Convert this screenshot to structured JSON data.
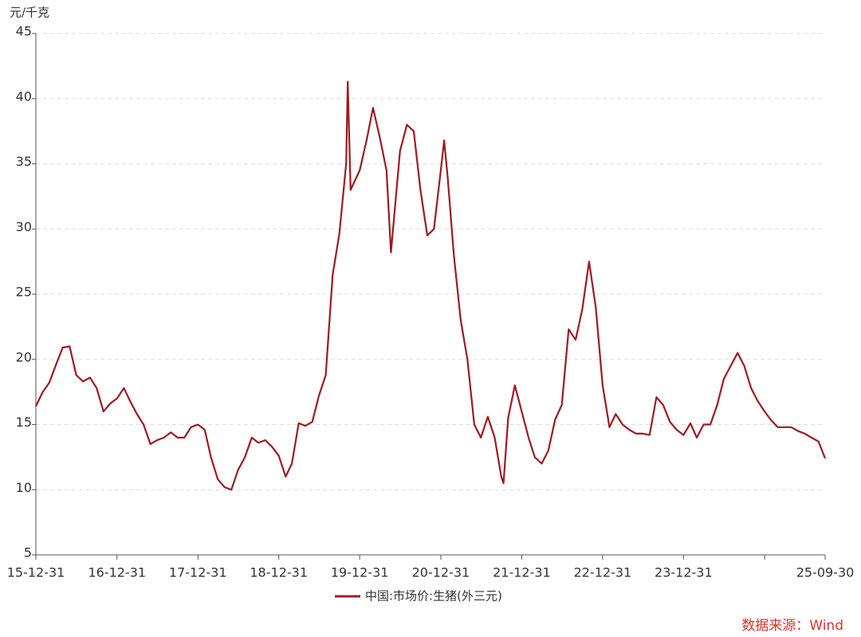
{
  "chart_data": {
    "type": "line",
    "y_label": "元/千克",
    "source": "数据来源：Wind",
    "xlim": [
      "15-12-31",
      "25-09-30"
    ],
    "xticks": [
      "15-12-31",
      "16-12-31",
      "17-12-31",
      "18-12-31",
      "19-12-31",
      "20-12-31",
      "21-12-31",
      "22-12-31",
      "23-12-31",
      {
        "value": "24-12-31",
        "label": null
      },
      "25-09-30"
    ],
    "ylim": [
      5,
      45
    ],
    "yticks": [
      5,
      10,
      15,
      20,
      25,
      30,
      35,
      40,
      45
    ],
    "grid": true,
    "x": [
      "15-12-31",
      "16-01-31",
      "16-02-29",
      "16-03-31",
      "16-04-30",
      "16-05-31",
      "16-06-30",
      "16-07-31",
      "16-08-31",
      "16-09-30",
      "16-10-31",
      "16-11-30",
      "16-12-31",
      "17-01-31",
      "17-02-28",
      "17-03-31",
      "17-04-30",
      "17-05-31",
      "17-06-30",
      "17-07-31",
      "17-08-31",
      "17-09-30",
      "17-10-31",
      "17-11-30",
      "17-12-31",
      "18-01-31",
      "18-02-28",
      "18-03-31",
      "18-04-30",
      "18-05-31",
      "18-06-30",
      "18-07-31",
      "18-08-31",
      "18-09-30",
      "18-10-31",
      "18-11-30",
      "18-12-31",
      "19-01-31",
      "19-02-28",
      "19-03-31",
      "19-04-30",
      "19-05-31",
      "19-06-30",
      "19-07-31",
      "19-08-31",
      "19-09-30",
      "19-10-31",
      "19-11-07",
      "19-11-20",
      "19-12-31",
      "20-01-31",
      "20-02-29",
      "20-03-31",
      "20-04-30",
      "20-05-20",
      "20-06-30",
      "20-07-31",
      "20-08-31",
      "20-09-30",
      "20-10-31",
      "20-11-30",
      "20-12-31",
      "21-01-15",
      "21-01-31",
      "21-02-28",
      "21-03-31",
      "21-04-30",
      "21-05-31",
      "21-06-30",
      "21-07-31",
      "21-08-31",
      "21-09-30",
      "21-10-10",
      "21-10-31",
      "21-11-30",
      "21-12-31",
      "22-01-31",
      "22-02-28",
      "22-03-31",
      "22-04-30",
      "22-05-31",
      "22-06-30",
      "22-07-31",
      "22-08-31",
      "22-09-30",
      "22-10-31",
      "22-11-30",
      "22-12-31",
      "23-01-31",
      "23-02-28",
      "23-03-31",
      "23-04-30",
      "23-05-31",
      "23-06-30",
      "23-07-31",
      "23-08-31",
      "23-09-30",
      "23-10-31",
      "23-11-30",
      "23-12-31",
      "24-01-31",
      "24-02-29",
      "24-03-31",
      "24-04-30",
      "24-05-31",
      "24-06-30",
      "24-07-31",
      "24-08-31",
      "24-09-30",
      "24-10-31",
      "24-11-30",
      "24-12-31",
      "25-01-31",
      "25-02-28",
      "25-03-31",
      "25-04-30",
      "25-05-31",
      "25-06-30",
      "25-07-31",
      "25-08-31",
      "25-09-30"
    ],
    "series": [
      {
        "name": "中国:市场价:生猪(外三元)",
        "color": "#9b1c22",
        "values": [
          16.4,
          17.5,
          18.2,
          19.6,
          20.9,
          21.0,
          18.8,
          18.3,
          18.6,
          17.8,
          16.0,
          16.6,
          17.0,
          17.8,
          16.8,
          15.8,
          15.0,
          13.5,
          13.8,
          14.0,
          14.4,
          14.0,
          14.0,
          14.8,
          15.0,
          14.6,
          12.5,
          10.8,
          10.2,
          10.0,
          11.5,
          12.5,
          14.0,
          13.6,
          13.8,
          13.3,
          12.6,
          11.0,
          12.0,
          15.1,
          14.9,
          15.2,
          17.2,
          18.8,
          26.5,
          29.6,
          35.0,
          41.3,
          33.0,
          34.5,
          36.8,
          39.3,
          37.0,
          34.5,
          28.2,
          36.0,
          38.0,
          37.5,
          33.0,
          29.5,
          30.0,
          34.5,
          36.8,
          34.0,
          28.0,
          23.0,
          20.0,
          15.0,
          14.0,
          15.6,
          14.0,
          11.0,
          10.5,
          15.5,
          18.0,
          16.0,
          14.0,
          12.5,
          12.0,
          13.0,
          15.4,
          16.5,
          22.3,
          21.5,
          23.8,
          27.5,
          24.0,
          18.0,
          14.8,
          15.8,
          15.0,
          14.6,
          14.3,
          14.3,
          14.2,
          17.1,
          16.5,
          15.2,
          14.6,
          14.2,
          15.1,
          14.0,
          15.0,
          15.0,
          16.5,
          18.5,
          19.5,
          20.5,
          19.5,
          17.8,
          16.8,
          16.0,
          15.3,
          14.8,
          14.8,
          14.8,
          14.5,
          14.3,
          14.0,
          13.7,
          12.4
        ]
      }
    ]
  }
}
